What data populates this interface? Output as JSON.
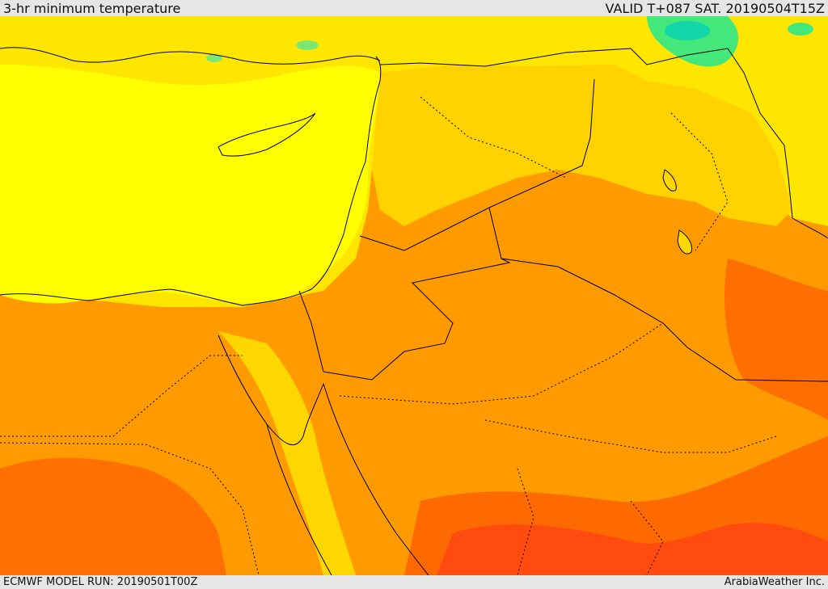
{
  "header": {
    "title": "3-hr minimum temperature",
    "valid_text": "VALID T+087 SAT. 20190504T15Z"
  },
  "footer": {
    "model_run": "ECMWF MODEL RUN: 20190501T00Z",
    "credit": "ArabiaWeather Inc."
  },
  "palette": {
    "yellow": "#ffff00",
    "gold": "#ffd700",
    "amber": "#ffb000",
    "orange": "#ff9200",
    "dark_orange": "#ff6a00",
    "red_orange": "#ff4a10",
    "green": "#44e87a",
    "teal": "#12d6a8",
    "border_color": "#000000"
  }
}
